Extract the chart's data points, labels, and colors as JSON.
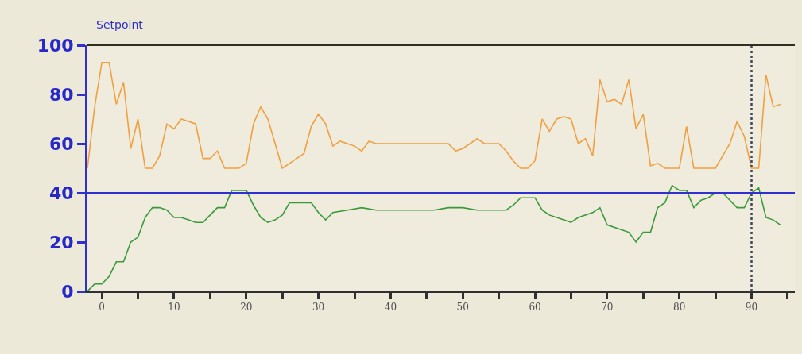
{
  "chart_data": {
    "type": "line",
    "title": "Setpoint",
    "series": [
      {
        "color": "#f0a040",
        "x": [
          -2,
          -1,
          0,
          1,
          2,
          3,
          4,
          5,
          6,
          7,
          8,
          9,
          10,
          11,
          12,
          13,
          14,
          15,
          16,
          17,
          18,
          19,
          20,
          21,
          22,
          23,
          24,
          25,
          26,
          27,
          28,
          29,
          30,
          31,
          32,
          33,
          34,
          35,
          36,
          37,
          38,
          40,
          48,
          49,
          50,
          52,
          53,
          55,
          56,
          57,
          58,
          59,
          60,
          61,
          62,
          63,
          64,
          65,
          66,
          67,
          68,
          69,
          70,
          71,
          72,
          73,
          74,
          75,
          76,
          77,
          78,
          80,
          81,
          82,
          85,
          87,
          88,
          89,
          90,
          91,
          92,
          93,
          94
        ],
        "values": [
          50,
          75,
          93,
          93,
          76,
          85,
          58,
          70,
          50,
          50,
          55,
          68,
          66,
          70,
          69,
          68,
          54,
          54,
          57,
          50,
          50,
          50,
          52,
          68,
          75,
          70,
          60,
          50,
          52,
          54,
          56,
          67,
          72,
          68,
          59,
          61,
          60,
          59,
          57,
          61,
          60,
          60,
          60,
          57,
          58,
          62,
          60,
          60,
          57,
          53,
          50,
          50,
          53,
          70,
          65,
          70,
          71,
          70,
          60,
          62,
          55,
          86,
          77,
          78,
          76,
          86,
          66,
          72,
          51,
          52,
          50,
          50,
          67,
          50,
          50,
          60,
          69,
          63,
          50,
          50,
          88,
          75,
          76
        ]
      },
      {
        "color": "#3a9a3a",
        "x": [
          -2,
          -1,
          0,
          1,
          2,
          3,
          4,
          5,
          6,
          7,
          8,
          9,
          10,
          11,
          12,
          13,
          14,
          15,
          16,
          17,
          18,
          19,
          20,
          21,
          22,
          23,
          24,
          25,
          26,
          27,
          28,
          29,
          30,
          31,
          32,
          34,
          36,
          38,
          46,
          48,
          50,
          52,
          56,
          57,
          58,
          59,
          60,
          61,
          62,
          64,
          65,
          66,
          68,
          69,
          70,
          72,
          73,
          74,
          75,
          76,
          77,
          78,
          79,
          80,
          81,
          82,
          83,
          84,
          85,
          86,
          87,
          88,
          89,
          90,
          91,
          92,
          93,
          94
        ],
        "values": [
          0,
          3,
          3,
          6,
          12,
          12,
          20,
          22,
          30,
          34,
          34,
          33,
          30,
          30,
          29,
          28,
          28,
          31,
          34,
          34,
          41,
          41,
          41,
          35,
          30,
          28,
          29,
          31,
          36,
          36,
          36,
          36,
          32,
          29,
          32,
          33,
          34,
          33,
          33,
          34,
          34,
          33,
          33,
          35,
          38,
          38,
          38,
          33,
          31,
          29,
          28,
          30,
          32,
          34,
          27,
          25,
          24,
          20,
          24,
          24,
          34,
          36,
          43,
          41,
          41,
          34,
          37,
          38,
          40,
          40,
          37,
          34,
          34,
          40,
          42,
          30,
          29,
          27
        ]
      }
    ],
    "xlim": [
      -2,
      96
    ],
    "ylim": [
      0,
      100
    ],
    "xticks": [
      0,
      {
        "value": 5,
        "label": null
      },
      10,
      {
        "value": 15,
        "label": null
      },
      20,
      {
        "value": 25,
        "label": null
      },
      30,
      {
        "value": 35,
        "label": null
      },
      40,
      {
        "value": 45,
        "label": null
      },
      50,
      {
        "value": 55,
        "label": null
      },
      60,
      {
        "value": 65,
        "label": null
      },
      70,
      {
        "value": 75,
        "label": null
      },
      80,
      {
        "value": 85,
        "label": null
      },
      90,
      {
        "value": 95,
        "label": null
      }
    ],
    "yticks": [
      0,
      20,
      40,
      60,
      80,
      100
    ],
    "ref_lines": [
      {
        "axis": "y",
        "value": 40,
        "color": "#3030d0",
        "line_style": "solid"
      },
      {
        "axis": "x",
        "value": 90,
        "color": "#404860",
        "line_style": "dotted"
      }
    ],
    "grid": false,
    "line_style": "solid",
    "marker": "none"
  }
}
